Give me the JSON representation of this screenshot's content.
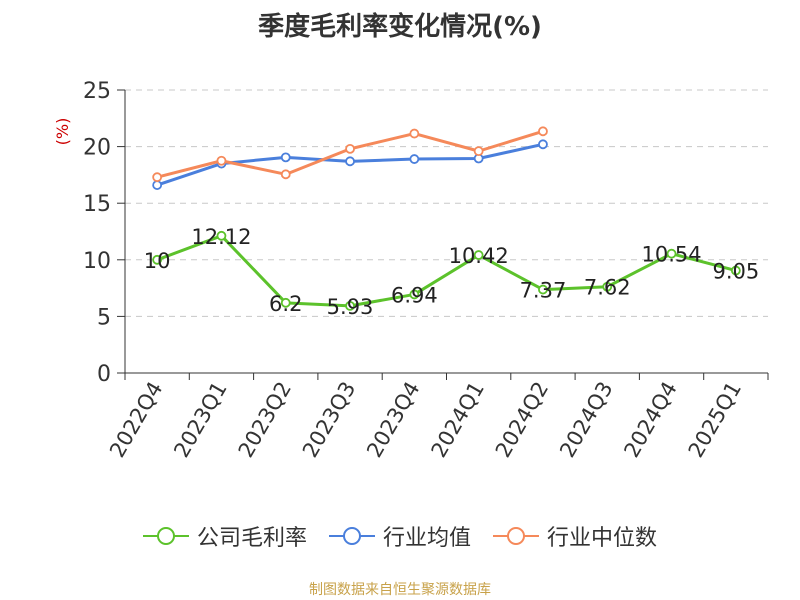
{
  "title": "季度毛利率变化情况(%)",
  "source": "制图数据来自恒生聚源数据库",
  "colors": {
    "company": "#5cc22b",
    "industry_avg": "#4a7fdc",
    "industry_median": "#f5895a",
    "grid": "#c8c8c8",
    "axis": "#333333",
    "unit_label": "#cc0000"
  },
  "chart_data": {
    "type": "line",
    "ylabel": "(%)",
    "xlabel": "",
    "ylim": [
      0,
      25
    ],
    "yticks": [
      0,
      5,
      10,
      15,
      20,
      25
    ],
    "grid": true,
    "legend_position": "bottom",
    "categories": [
      "2022Q4",
      "2023Q1",
      "2023Q2",
      "2023Q3",
      "2023Q4",
      "2024Q1",
      "2024Q2",
      "2024Q3",
      "2024Q4",
      "2025Q1"
    ],
    "series": [
      {
        "name": "公司毛利率",
        "color": "#5cc22b",
        "values": [
          10,
          12.12,
          6.2,
          5.93,
          6.94,
          10.42,
          7.37,
          7.62,
          10.54,
          9.05
        ],
        "labels": [
          "10",
          "12.12",
          "6.2",
          "5.93",
          "6.94",
          "10.42",
          "7.37",
          "7.62",
          "10.54",
          "9.05"
        ]
      },
      {
        "name": "行业均值",
        "color": "#4a7fdc",
        "values": [
          16.6,
          18.5,
          19.05,
          18.7,
          18.9,
          18.95,
          20.2,
          null,
          null,
          null
        ]
      },
      {
        "name": "行业中位数",
        "color": "#f5895a",
        "values": [
          17.3,
          18.75,
          17.55,
          19.8,
          21.15,
          19.6,
          21.35,
          null,
          null,
          null
        ]
      }
    ]
  }
}
